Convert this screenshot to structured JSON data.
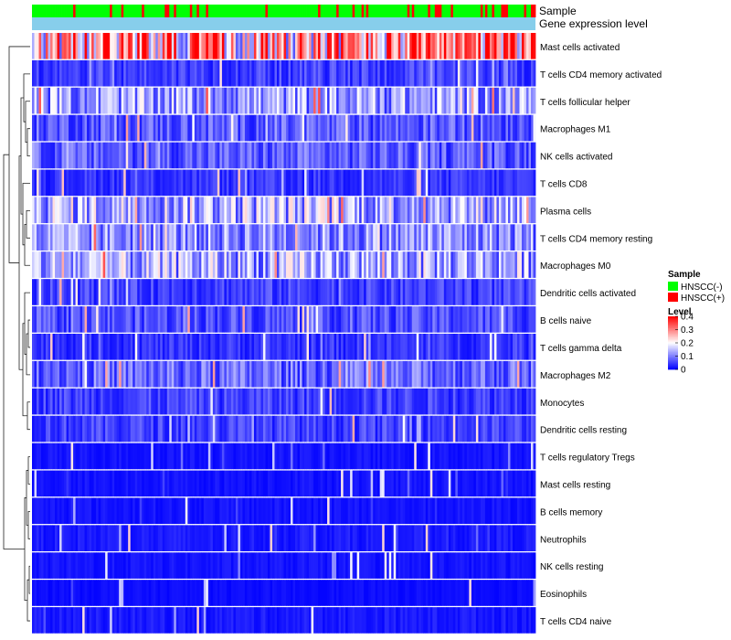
{
  "chart_data": {
    "type": "heatmap",
    "annotation_tracks": [
      {
        "name": "Sample",
        "kind": "categorical"
      },
      {
        "name": "Gene expression level",
        "kind": "constant",
        "color": "#87CEEB"
      }
    ],
    "rows": [
      {
        "label": "Mast cells activated",
        "mean": 0.26
      },
      {
        "label": "T cells CD4 memory activated",
        "mean": 0.05
      },
      {
        "label": "T cells follicular helper",
        "mean": 0.12
      },
      {
        "label": "Macrophages M1",
        "mean": 0.07
      },
      {
        "label": "NK cells activated",
        "mean": 0.07
      },
      {
        "label": "T cells CD8",
        "mean": 0.04
      },
      {
        "label": "Plasma cells",
        "mean": 0.14
      },
      {
        "label": "T cells CD4 memory resting",
        "mean": 0.11
      },
      {
        "label": "Macrophages M0",
        "mean": 0.13
      },
      {
        "label": "Dendritic cells activated",
        "mean": 0.05
      },
      {
        "label": "B cells naive",
        "mean": 0.06
      },
      {
        "label": "T cells gamma delta",
        "mean": 0.04
      },
      {
        "label": "Macrophages M2",
        "mean": 0.08
      },
      {
        "label": "Monocytes",
        "mean": 0.05
      },
      {
        "label": "Dendritic cells resting",
        "mean": 0.05
      },
      {
        "label": "T cells regulatory  Tregs",
        "mean": 0.015
      },
      {
        "label": "Mast cells resting",
        "mean": 0.015
      },
      {
        "label": "B cells memory",
        "mean": 0.015
      },
      {
        "label": "Neutrophils",
        "mean": 0.02
      },
      {
        "label": "NK cells resting",
        "mean": 0.015
      },
      {
        "label": "Eosinophils",
        "mean": 0.01
      },
      {
        "label": "T cells CD4 naive",
        "mean": 0.02
      }
    ],
    "n_columns": 220,
    "value_range": [
      0,
      0.4
    ],
    "legend": {
      "sample_title": "Sample",
      "sample_entries": [
        {
          "label": "HNSCC(-)",
          "color": "#00FF00"
        },
        {
          "label": "HNSCC(+)",
          "color": "#FF0000"
        }
      ],
      "level_title": "Level",
      "level_ticks": [
        {
          "value": 0.4,
          "label": "0.4"
        },
        {
          "value": 0.3,
          "label": "0.3"
        },
        {
          "value": 0.2,
          "label": "0.2"
        },
        {
          "value": 0.1,
          "label": "0.1"
        },
        {
          "value": 0,
          "label": "0"
        }
      ],
      "colors": {
        "low": "#0000FF",
        "mid": "#FFFFFF",
        "high": "#FF0000"
      }
    },
    "dendrogram": "row clustering tree on left"
  }
}
